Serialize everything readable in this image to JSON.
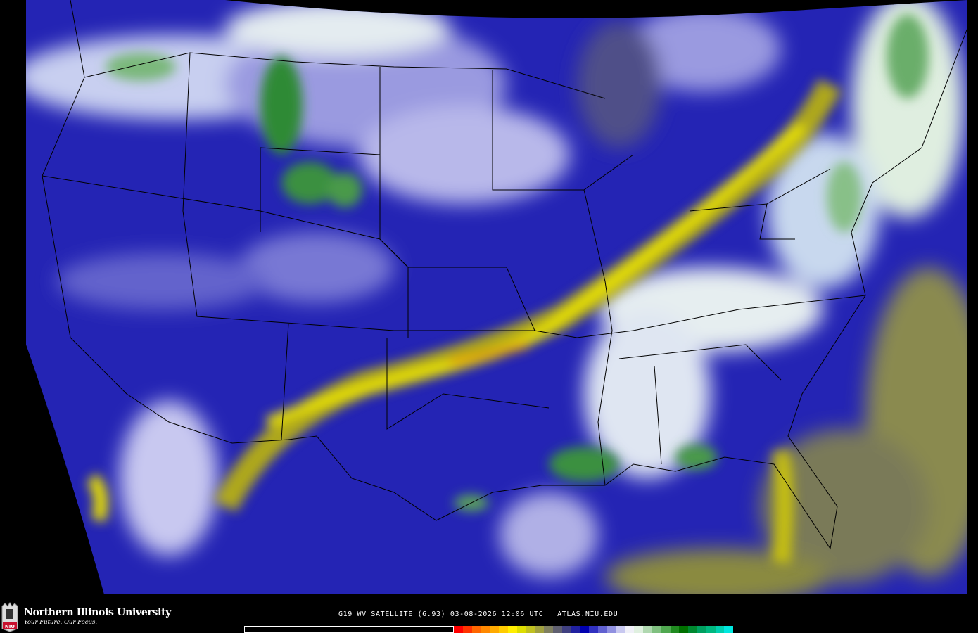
{
  "branding": {
    "university": "Northern Illinois University",
    "tagline": "Your Future. Our Focus.",
    "logo_text": "NIU"
  },
  "caption": "G19 WV SATELLITE (6.93) 03-08-2026 12:06 UTC   ATLAS.NIU.EDU",
  "colorbar": {
    "colors": [
      "#ff0000",
      "#ff3300",
      "#ff6600",
      "#ff8800",
      "#ffaa00",
      "#ffcc00",
      "#ffee00",
      "#dddd00",
      "#c0c020",
      "#a0a040",
      "#808060",
      "#606070",
      "#404080",
      "#2020a0",
      "#0000b0",
      "#3030c0",
      "#6060d0",
      "#9090e0",
      "#c8c8f0",
      "#f0f0f8",
      "#e0f0e0",
      "#b0d8b0",
      "#80c080",
      "#50a850",
      "#208a20",
      "#007000",
      "#008830",
      "#00a060",
      "#00b880",
      "#00d0b0",
      "#00e8e0"
    ]
  },
  "image_colors": {
    "background": "#000000",
    "deep_blue": "#1c1cb0",
    "mid_blue": "#4848c8",
    "lavender": "#9a9ae0",
    "white": "#eef0f8",
    "green": "#2f8a36",
    "yellow": "#e8e000",
    "orange": "#f0a000",
    "olive": "#8a8a50"
  }
}
